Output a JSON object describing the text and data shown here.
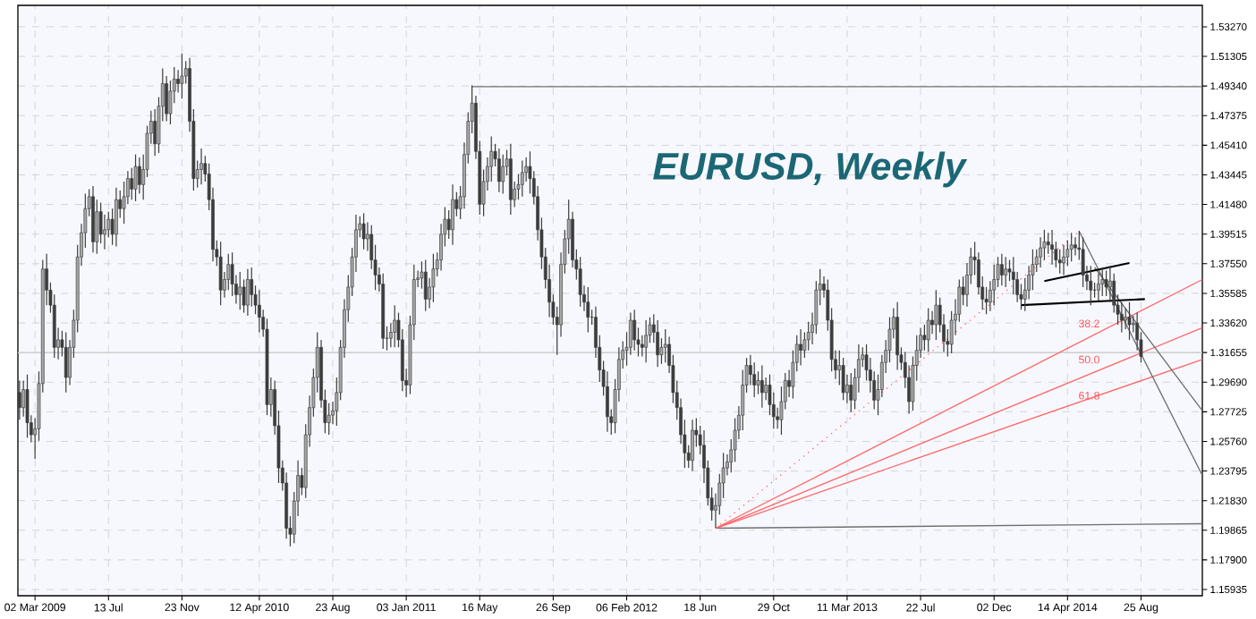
{
  "chart_data": {
    "type": "candlestick",
    "title": "EURUSD, Weekly",
    "color": "#3c3c3c",
    "x": [
      "2009-02-02",
      "2009-02-09",
      "2009-02-16",
      "2009-02-23",
      "2009-03-02",
      "2009-03-09",
      "2009-03-16",
      "2009-03-23",
      "2009-03-30",
      "2009-04-06",
      "2009-04-13",
      "2009-04-20",
      "2009-04-27",
      "2009-05-04",
      "2009-05-11",
      "2009-05-18",
      "2009-05-25",
      "2009-06-01",
      "2009-06-08",
      "2009-06-15",
      "2009-06-22",
      "2009-06-29",
      "2009-07-06",
      "2009-07-13",
      "2009-07-20",
      "2009-07-27",
      "2009-08-03",
      "2009-08-10",
      "2009-08-17",
      "2009-08-24",
      "2009-08-31",
      "2009-09-07",
      "2009-09-14",
      "2009-09-21",
      "2009-09-28",
      "2009-10-05",
      "2009-10-12",
      "2009-10-19",
      "2009-10-26",
      "2009-11-02",
      "2009-11-09",
      "2009-11-16",
      "2009-11-23",
      "2009-11-30",
      "2009-12-07",
      "2009-12-14",
      "2009-12-21",
      "2009-12-28",
      "2010-01-04",
      "2010-01-11",
      "2010-01-18",
      "2010-01-25",
      "2010-02-01",
      "2010-02-08",
      "2010-02-15",
      "2010-02-22",
      "2010-03-01",
      "2010-03-08",
      "2010-03-15",
      "2010-03-22",
      "2010-03-29",
      "2010-04-05",
      "2010-04-12",
      "2010-04-19",
      "2010-04-26",
      "2010-05-03",
      "2010-05-10",
      "2010-05-17",
      "2010-05-24",
      "2010-05-31",
      "2010-06-07",
      "2010-06-14",
      "2010-06-21",
      "2010-06-28",
      "2010-07-05",
      "2010-07-12",
      "2010-07-19",
      "2010-07-26",
      "2010-08-02",
      "2010-08-09",
      "2010-08-16",
      "2010-08-23",
      "2010-08-30",
      "2010-09-06",
      "2010-09-13",
      "2010-09-20",
      "2010-09-27",
      "2010-10-04",
      "2010-10-11",
      "2010-10-18",
      "2010-10-25",
      "2010-11-01",
      "2010-11-08",
      "2010-11-15",
      "2010-11-22",
      "2010-11-29",
      "2010-12-06",
      "2010-12-13",
      "2010-12-20",
      "2010-12-27",
      "2011-01-03",
      "2011-01-10",
      "2011-01-17",
      "2011-01-24",
      "2011-01-31",
      "2011-02-07",
      "2011-02-14",
      "2011-02-21",
      "2011-02-28",
      "2011-03-07",
      "2011-03-14",
      "2011-03-21",
      "2011-03-28",
      "2011-04-04",
      "2011-04-11",
      "2011-04-18",
      "2011-04-25",
      "2011-05-02",
      "2011-05-09",
      "2011-05-16",
      "2011-05-23",
      "2011-05-30",
      "2011-06-06",
      "2011-06-13",
      "2011-06-20",
      "2011-06-27",
      "2011-07-04",
      "2011-07-11",
      "2011-07-18",
      "2011-07-25",
      "2011-08-01",
      "2011-08-08",
      "2011-08-15",
      "2011-08-22",
      "2011-08-29",
      "2011-09-05",
      "2011-09-12",
      "2011-09-19",
      "2011-09-26",
      "2011-10-03",
      "2011-10-10",
      "2011-10-17",
      "2011-10-24",
      "2011-10-31",
      "2011-11-07",
      "2011-11-14",
      "2011-11-21",
      "2011-11-28",
      "2011-12-05",
      "2011-12-12",
      "2011-12-19",
      "2011-12-26",
      "2012-01-02",
      "2012-01-09",
      "2012-01-16",
      "2012-01-23",
      "2012-01-30",
      "2012-02-06",
      "2012-02-13",
      "2012-02-20",
      "2012-02-27",
      "2012-03-05",
      "2012-03-12",
      "2012-03-19",
      "2012-03-26",
      "2012-04-02",
      "2012-04-09",
      "2012-04-16",
      "2012-04-23",
      "2012-04-30",
      "2012-05-07",
      "2012-05-14",
      "2012-05-21",
      "2012-05-28",
      "2012-06-04",
      "2012-06-11",
      "2012-06-18",
      "2012-06-25",
      "2012-07-02",
      "2012-07-09",
      "2012-07-16",
      "2012-07-23",
      "2012-07-30",
      "2012-08-06",
      "2012-08-13",
      "2012-08-20",
      "2012-08-27",
      "2012-09-03",
      "2012-09-10",
      "2012-09-17",
      "2012-09-24",
      "2012-10-01",
      "2012-10-08",
      "2012-10-15",
      "2012-10-22",
      "2012-10-29",
      "2012-11-05",
      "2012-11-12",
      "2012-11-19",
      "2012-11-26",
      "2012-12-03",
      "2012-12-10",
      "2012-12-17",
      "2012-12-24",
      "2012-12-31",
      "2013-01-07",
      "2013-01-14",
      "2013-01-21",
      "2013-01-28",
      "2013-02-04",
      "2013-02-11",
      "2013-02-18",
      "2013-02-25",
      "2013-03-04",
      "2013-03-11",
      "2013-03-18",
      "2013-03-25",
      "2013-04-01",
      "2013-04-08",
      "2013-04-15",
      "2013-04-22",
      "2013-04-29",
      "2013-05-06",
      "2013-05-13",
      "2013-05-20",
      "2013-05-27",
      "2013-06-03",
      "2013-06-10",
      "2013-06-17",
      "2013-06-24",
      "2013-07-01",
      "2013-07-08",
      "2013-07-15",
      "2013-07-22",
      "2013-07-29",
      "2013-08-05",
      "2013-08-12",
      "2013-08-19",
      "2013-08-26",
      "2013-09-02",
      "2013-09-09",
      "2013-09-16",
      "2013-09-23",
      "2013-09-30",
      "2013-10-07",
      "2013-10-14",
      "2013-10-21",
      "2013-10-28",
      "2013-11-04",
      "2013-11-11",
      "2013-11-18",
      "2013-11-25",
      "2013-12-02",
      "2013-12-09",
      "2013-12-16",
      "2013-12-23",
      "2013-12-30",
      "2014-01-06",
      "2014-01-13",
      "2014-01-20",
      "2014-01-27",
      "2014-02-03",
      "2014-02-10",
      "2014-02-17",
      "2014-02-24",
      "2014-03-03",
      "2014-03-10",
      "2014-03-17",
      "2014-03-24",
      "2014-03-31",
      "2014-04-07",
      "2014-04-14",
      "2014-04-21",
      "2014-04-28",
      "2014-05-05",
      "2014-05-12",
      "2014-05-19",
      "2014-05-26",
      "2014-06-02",
      "2014-06-09",
      "2014-06-16",
      "2014-06-23",
      "2014-06-30",
      "2014-07-07",
      "2014-07-14",
      "2014-07-21",
      "2014-07-28",
      "2014-08-04",
      "2014-08-11",
      "2014-08-18",
      "2014-08-25"
    ],
    "ohlc": [
      [
        1.29,
        1.298,
        1.272,
        1.28
      ],
      [
        1.28,
        1.298,
        1.274,
        1.292
      ],
      [
        1.292,
        1.302,
        1.26,
        1.27
      ],
      [
        1.27,
        1.275,
        1.257,
        1.262
      ],
      [
        1.262,
        1.273,
        1.246,
        1.266
      ],
      [
        1.266,
        1.304,
        1.258,
        1.296
      ],
      [
        1.296,
        1.378,
        1.29,
        1.372
      ],
      [
        1.372,
        1.382,
        1.348,
        1.358
      ],
      [
        1.358,
        1.363,
        1.343,
        1.348
      ],
      [
        1.348,
        1.355,
        1.313,
        1.32
      ],
      [
        1.32,
        1.333,
        1.312,
        1.325
      ],
      [
        1.325,
        1.331,
        1.314,
        1.32
      ],
      [
        1.32,
        1.33,
        1.29,
        1.3
      ],
      [
        1.3,
        1.325,
        1.295,
        1.32
      ],
      [
        1.32,
        1.345,
        1.313,
        1.338
      ],
      [
        1.338,
        1.388,
        1.33,
        1.38
      ],
      [
        1.38,
        1.402,
        1.374,
        1.396
      ],
      [
        1.396,
        1.422,
        1.386,
        1.412
      ],
      [
        1.412,
        1.425,
        1.407,
        1.42
      ],
      [
        1.42,
        1.427,
        1.383,
        1.39
      ],
      [
        1.39,
        1.418,
        1.382,
        1.41
      ],
      [
        1.41,
        1.416,
        1.389,
        1.395
      ],
      [
        1.395,
        1.408,
        1.385,
        1.398
      ],
      [
        1.398,
        1.41,
        1.393,
        1.405
      ],
      [
        1.405,
        1.412,
        1.388,
        1.395
      ],
      [
        1.395,
        1.426,
        1.387,
        1.418
      ],
      [
        1.418,
        1.424,
        1.406,
        1.412
      ],
      [
        1.412,
        1.43,
        1.402,
        1.42
      ],
      [
        1.42,
        1.437,
        1.415,
        1.432
      ],
      [
        1.432,
        1.439,
        1.418,
        1.425
      ],
      [
        1.425,
        1.448,
        1.417,
        1.44
      ],
      [
        1.44,
        1.446,
        1.422,
        1.428
      ],
      [
        1.428,
        1.448,
        1.418,
        1.438
      ],
      [
        1.438,
        1.467,
        1.433,
        1.462
      ],
      [
        1.462,
        1.477,
        1.455,
        1.47
      ],
      [
        1.47,
        1.478,
        1.447,
        1.455
      ],
      [
        1.455,
        1.486,
        1.449,
        1.48
      ],
      [
        1.48,
        1.505,
        1.47,
        1.495
      ],
      [
        1.495,
        1.5,
        1.47,
        1.475
      ],
      [
        1.475,
        1.497,
        1.468,
        1.49
      ],
      [
        1.49,
        1.506,
        1.482,
        1.498
      ],
      [
        1.498,
        1.504,
        1.489,
        1.495
      ],
      [
        1.495,
        1.515,
        1.485,
        1.5
      ],
      [
        1.5,
        1.51,
        1.495,
        1.505
      ],
      [
        1.505,
        1.512,
        1.463,
        1.47
      ],
      [
        1.47,
        1.478,
        1.424,
        1.432
      ],
      [
        1.432,
        1.444,
        1.426,
        1.438
      ],
      [
        1.438,
        1.452,
        1.428,
        1.442
      ],
      [
        1.442,
        1.447,
        1.43,
        1.435
      ],
      [
        1.435,
        1.442,
        1.411,
        1.418
      ],
      [
        1.418,
        1.426,
        1.377,
        1.385
      ],
      [
        1.385,
        1.391,
        1.374,
        1.38
      ],
      [
        1.38,
        1.39,
        1.348,
        1.358
      ],
      [
        1.358,
        1.37,
        1.353,
        1.365
      ],
      [
        1.365,
        1.382,
        1.358,
        1.375
      ],
      [
        1.375,
        1.383,
        1.354,
        1.362
      ],
      [
        1.362,
        1.368,
        1.349,
        1.355
      ],
      [
        1.355,
        1.37,
        1.345,
        1.36
      ],
      [
        1.36,
        1.365,
        1.343,
        1.348
      ],
      [
        1.348,
        1.372,
        1.341,
        1.365
      ],
      [
        1.365,
        1.373,
        1.347,
        1.355
      ],
      [
        1.355,
        1.361,
        1.342,
        1.348
      ],
      [
        1.348,
        1.358,
        1.33,
        1.34
      ],
      [
        1.34,
        1.345,
        1.327,
        1.332
      ],
      [
        1.332,
        1.339,
        1.275,
        1.282
      ],
      [
        1.282,
        1.3,
        1.274,
        1.292
      ],
      [
        1.292,
        1.298,
        1.262,
        1.268
      ],
      [
        1.268,
        1.278,
        1.23,
        1.24
      ],
      [
        1.24,
        1.245,
        1.225,
        1.23
      ],
      [
        1.23,
        1.237,
        1.193,
        1.2
      ],
      [
        1.2,
        1.208,
        1.188,
        1.196
      ],
      [
        1.196,
        1.224,
        1.19,
        1.218
      ],
      [
        1.218,
        1.245,
        1.208,
        1.235
      ],
      [
        1.235,
        1.24,
        1.222,
        1.227
      ],
      [
        1.227,
        1.269,
        1.22,
        1.262
      ],
      [
        1.262,
        1.288,
        1.254,
        1.28
      ],
      [
        1.28,
        1.306,
        1.274,
        1.3
      ],
      [
        1.3,
        1.33,
        1.29,
        1.32
      ],
      [
        1.32,
        1.325,
        1.28,
        1.285
      ],
      [
        1.285,
        1.292,
        1.263,
        1.27
      ],
      [
        1.27,
        1.283,
        1.262,
        1.275
      ],
      [
        1.275,
        1.284,
        1.269,
        1.278
      ],
      [
        1.278,
        1.3,
        1.268,
        1.29
      ],
      [
        1.29,
        1.325,
        1.285,
        1.32
      ],
      [
        1.32,
        1.352,
        1.313,
        1.345
      ],
      [
        1.345,
        1.368,
        1.337,
        1.36
      ],
      [
        1.36,
        1.386,
        1.354,
        1.38
      ],
      [
        1.38,
        1.408,
        1.37,
        1.398
      ],
      [
        1.398,
        1.407,
        1.393,
        1.402
      ],
      [
        1.402,
        1.409,
        1.385,
        1.392
      ],
      [
        1.392,
        1.403,
        1.384,
        1.395
      ],
      [
        1.395,
        1.401,
        1.372,
        1.378
      ],
      [
        1.378,
        1.388,
        1.358,
        1.368
      ],
      [
        1.368,
        1.373,
        1.357,
        1.362
      ],
      [
        1.362,
        1.369,
        1.319,
        1.326
      ],
      [
        1.326,
        1.334,
        1.318,
        1.326
      ],
      [
        1.326,
        1.336,
        1.32,
        1.33
      ],
      [
        1.33,
        1.348,
        1.32,
        1.338
      ],
      [
        1.338,
        1.343,
        1.32,
        1.325
      ],
      [
        1.325,
        1.332,
        1.291,
        1.298
      ],
      [
        1.298,
        1.306,
        1.287,
        1.295
      ],
      [
        1.295,
        1.341,
        1.289,
        1.335
      ],
      [
        1.335,
        1.375,
        1.325,
        1.365
      ],
      [
        1.365,
        1.371,
        1.36,
        1.366
      ],
      [
        1.366,
        1.377,
        1.359,
        1.37
      ],
      [
        1.37,
        1.378,
        1.344,
        1.352
      ],
      [
        1.352,
        1.366,
        1.346,
        1.36
      ],
      [
        1.36,
        1.382,
        1.35,
        1.372
      ],
      [
        1.372,
        1.383,
        1.367,
        1.378
      ],
      [
        1.378,
        1.402,
        1.371,
        1.395
      ],
      [
        1.395,
        1.413,
        1.387,
        1.405
      ],
      [
        1.405,
        1.411,
        1.392,
        1.398
      ],
      [
        1.398,
        1.428,
        1.388,
        1.418
      ],
      [
        1.418,
        1.423,
        1.407,
        1.412
      ],
      [
        1.412,
        1.427,
        1.405,
        1.42
      ],
      [
        1.42,
        1.456,
        1.412,
        1.448
      ],
      [
        1.448,
        1.476,
        1.442,
        1.47
      ],
      [
        1.47,
        1.494,
        1.462,
        1.482
      ],
      [
        1.482,
        1.487,
        1.445,
        1.45
      ],
      [
        1.45,
        1.457,
        1.408,
        1.415
      ],
      [
        1.415,
        1.438,
        1.407,
        1.43
      ],
      [
        1.43,
        1.446,
        1.424,
        1.44
      ],
      [
        1.44,
        1.46,
        1.43,
        1.45
      ],
      [
        1.45,
        1.455,
        1.44,
        1.445
      ],
      [
        1.445,
        1.452,
        1.423,
        1.43
      ],
      [
        1.43,
        1.448,
        1.422,
        1.44
      ],
      [
        1.44,
        1.451,
        1.434,
        1.445
      ],
      [
        1.445,
        1.455,
        1.408,
        1.418
      ],
      [
        1.418,
        1.43,
        1.413,
        1.425
      ],
      [
        1.425,
        1.435,
        1.418,
        1.428
      ],
      [
        1.428,
        1.444,
        1.42,
        1.436
      ],
      [
        1.436,
        1.446,
        1.43,
        1.44
      ],
      [
        1.44,
        1.45,
        1.422,
        1.432
      ],
      [
        1.432,
        1.437,
        1.415,
        1.42
      ],
      [
        1.42,
        1.427,
        1.391,
        1.398
      ],
      [
        1.398,
        1.406,
        1.372,
        1.38
      ],
      [
        1.38,
        1.386,
        1.359,
        1.365
      ],
      [
        1.365,
        1.375,
        1.34,
        1.35
      ],
      [
        1.35,
        1.355,
        1.335,
        1.34
      ],
      [
        1.34,
        1.347,
        1.315,
        1.335
      ],
      [
        1.335,
        1.383,
        1.327,
        1.375
      ],
      [
        1.375,
        1.398,
        1.369,
        1.392
      ],
      [
        1.392,
        1.418,
        1.382,
        1.405
      ],
      [
        1.405,
        1.41,
        1.373,
        1.378
      ],
      [
        1.378,
        1.385,
        1.365,
        1.372
      ],
      [
        1.372,
        1.38,
        1.347,
        1.355
      ],
      [
        1.355,
        1.361,
        1.344,
        1.35
      ],
      [
        1.35,
        1.36,
        1.33,
        1.34
      ],
      [
        1.34,
        1.345,
        1.335,
        1.34
      ],
      [
        1.34,
        1.347,
        1.313,
        1.32
      ],
      [
        1.32,
        1.328,
        1.297,
        1.305
      ],
      [
        1.305,
        1.311,
        1.288,
        1.294
      ],
      [
        1.294,
        1.304,
        1.264,
        1.274
      ],
      [
        1.274,
        1.279,
        1.262,
        1.27
      ],
      [
        1.27,
        1.299,
        1.263,
        1.292
      ],
      [
        1.292,
        1.32,
        1.284,
        1.312
      ],
      [
        1.312,
        1.324,
        1.306,
        1.318
      ],
      [
        1.318,
        1.33,
        1.308,
        1.32
      ],
      [
        1.32,
        1.343,
        1.315,
        1.338
      ],
      [
        1.338,
        1.345,
        1.318,
        1.325
      ],
      [
        1.325,
        1.333,
        1.314,
        1.322
      ],
      [
        1.322,
        1.328,
        1.314,
        1.32
      ],
      [
        1.32,
        1.338,
        1.31,
        1.328
      ],
      [
        1.328,
        1.34,
        1.323,
        1.335
      ],
      [
        1.335,
        1.342,
        1.323,
        1.33
      ],
      [
        1.33,
        1.338,
        1.307,
        1.315
      ],
      [
        1.315,
        1.326,
        1.309,
        1.32
      ],
      [
        1.32,
        1.332,
        1.31,
        1.322
      ],
      [
        1.322,
        1.327,
        1.303,
        1.308
      ],
      [
        1.308,
        1.315,
        1.283,
        1.29
      ],
      [
        1.29,
        1.298,
        1.272,
        1.28
      ],
      [
        1.28,
        1.286,
        1.256,
        1.262
      ],
      [
        1.262,
        1.272,
        1.24,
        1.25
      ],
      [
        1.25,
        1.255,
        1.24,
        1.245
      ],
      [
        1.245,
        1.272,
        1.238,
        1.265
      ],
      [
        1.265,
        1.273,
        1.254,
        1.262
      ],
      [
        1.262,
        1.268,
        1.249,
        1.255
      ],
      [
        1.255,
        1.265,
        1.23,
        1.24
      ],
      [
        1.24,
        1.245,
        1.215,
        1.22
      ],
      [
        1.22,
        1.227,
        1.205,
        1.212
      ],
      [
        1.212,
        1.223,
        1.2003,
        1.215
      ],
      [
        1.215,
        1.236,
        1.209,
        1.23
      ],
      [
        1.23,
        1.25,
        1.22,
        1.24
      ],
      [
        1.24,
        1.249,
        1.235,
        1.244
      ],
      [
        1.244,
        1.259,
        1.237,
        1.252
      ],
      [
        1.252,
        1.273,
        1.244,
        1.265
      ],
      [
        1.265,
        1.281,
        1.259,
        1.275
      ],
      [
        1.275,
        1.305,
        1.265,
        1.295
      ],
      [
        1.295,
        1.313,
        1.29,
        1.308
      ],
      [
        1.308,
        1.315,
        1.295,
        1.302
      ],
      [
        1.302,
        1.31,
        1.287,
        1.295
      ],
      [
        1.295,
        1.304,
        1.289,
        1.298
      ],
      [
        1.298,
        1.308,
        1.28,
        1.29
      ],
      [
        1.29,
        1.3,
        1.285,
        1.295
      ],
      [
        1.295,
        1.302,
        1.275,
        1.282
      ],
      [
        1.282,
        1.29,
        1.266,
        1.274
      ],
      [
        1.274,
        1.28,
        1.266,
        1.272
      ],
      [
        1.272,
        1.294,
        1.262,
        1.284
      ],
      [
        1.284,
        1.303,
        1.279,
        1.298
      ],
      [
        1.298,
        1.305,
        1.287,
        1.294
      ],
      [
        1.294,
        1.318,
        1.286,
        1.31
      ],
      [
        1.31,
        1.328,
        1.304,
        1.322
      ],
      [
        1.322,
        1.332,
        1.308,
        1.318
      ],
      [
        1.318,
        1.33,
        1.313,
        1.325
      ],
      [
        1.325,
        1.337,
        1.318,
        1.33
      ],
      [
        1.33,
        1.343,
        1.322,
        1.335
      ],
      [
        1.335,
        1.364,
        1.329,
        1.358
      ],
      [
        1.358,
        1.372,
        1.348,
        1.362
      ],
      [
        1.362,
        1.367,
        1.353,
        1.358
      ],
      [
        1.358,
        1.365,
        1.331,
        1.338
      ],
      [
        1.338,
        1.346,
        1.304,
        1.312
      ],
      [
        1.312,
        1.318,
        1.299,
        1.305
      ],
      [
        1.305,
        1.318,
        1.295,
        1.308
      ],
      [
        1.308,
        1.313,
        1.285,
        1.29
      ],
      [
        1.29,
        1.302,
        1.283,
        1.295
      ],
      [
        1.295,
        1.303,
        1.277,
        1.285
      ],
      [
        1.285,
        1.306,
        1.279,
        1.3
      ],
      [
        1.3,
        1.322,
        1.29,
        1.312
      ],
      [
        1.312,
        1.32,
        1.307,
        1.315
      ],
      [
        1.315,
        1.322,
        1.298,
        1.305
      ],
      [
        1.305,
        1.313,
        1.29,
        1.298
      ],
      [
        1.298,
        1.304,
        1.279,
        1.285
      ],
      [
        1.285,
        1.302,
        1.275,
        1.292
      ],
      [
        1.292,
        1.315,
        1.287,
        1.31
      ],
      [
        1.31,
        1.325,
        1.303,
        1.318
      ],
      [
        1.318,
        1.34,
        1.31,
        1.332
      ],
      [
        1.332,
        1.346,
        1.326,
        1.34
      ],
      [
        1.34,
        1.35,
        1.305,
        1.315
      ],
      [
        1.315,
        1.32,
        1.305,
        1.31
      ],
      [
        1.31,
        1.317,
        1.293,
        1.3
      ],
      [
        1.3,
        1.308,
        1.276,
        1.284
      ],
      [
        1.284,
        1.314,
        1.278,
        1.308
      ],
      [
        1.308,
        1.328,
        1.298,
        1.318
      ],
      [
        1.318,
        1.333,
        1.313,
        1.328
      ],
      [
        1.328,
        1.335,
        1.318,
        1.325
      ],
      [
        1.325,
        1.346,
        1.317,
        1.338
      ],
      [
        1.338,
        1.344,
        1.329,
        1.335
      ],
      [
        1.335,
        1.358,
        1.325,
        1.348
      ],
      [
        1.348,
        1.353,
        1.33,
        1.335
      ],
      [
        1.335,
        1.342,
        1.317,
        1.324
      ],
      [
        1.324,
        1.332,
        1.314,
        1.322
      ],
      [
        1.322,
        1.344,
        1.316,
        1.338
      ],
      [
        1.338,
        1.352,
        1.328,
        1.342
      ],
      [
        1.342,
        1.365,
        1.337,
        1.36
      ],
      [
        1.36,
        1.367,
        1.348,
        1.355
      ],
      [
        1.355,
        1.376,
        1.347,
        1.368
      ],
      [
        1.368,
        1.386,
        1.362,
        1.38
      ],
      [
        1.38,
        1.39,
        1.368,
        1.378
      ],
      [
        1.378,
        1.383,
        1.355,
        1.36
      ],
      [
        1.36,
        1.367,
        1.345,
        1.352
      ],
      [
        1.352,
        1.36,
        1.342,
        1.35
      ],
      [
        1.35,
        1.364,
        1.344,
        1.358
      ],
      [
        1.358,
        1.375,
        1.348,
        1.365
      ],
      [
        1.365,
        1.38,
        1.36,
        1.375
      ],
      [
        1.375,
        1.382,
        1.361,
        1.368
      ],
      [
        1.368,
        1.38,
        1.36,
        1.372
      ],
      [
        1.372,
        1.378,
        1.364,
        1.37
      ],
      [
        1.37,
        1.38,
        1.355,
        1.365
      ],
      [
        1.365,
        1.37,
        1.35,
        1.355
      ],
      [
        1.355,
        1.362,
        1.345,
        1.352
      ],
      [
        1.352,
        1.366,
        1.344,
        1.358
      ],
      [
        1.358,
        1.374,
        1.352,
        1.368
      ],
      [
        1.368,
        1.385,
        1.358,
        1.375
      ],
      [
        1.375,
        1.385,
        1.37,
        1.38
      ],
      [
        1.38,
        1.393,
        1.373,
        1.386
      ],
      [
        1.386,
        1.398,
        1.378,
        1.39
      ],
      [
        1.39,
        1.396,
        1.382,
        1.388
      ],
      [
        1.388,
        1.398,
        1.375,
        1.385
      ],
      [
        1.385,
        1.39,
        1.373,
        1.378
      ],
      [
        1.378,
        1.385,
        1.369,
        1.376
      ],
      [
        1.376,
        1.388,
        1.368,
        1.38
      ],
      [
        1.38,
        1.391,
        1.374,
        1.385
      ],
      [
        1.385,
        1.396,
        1.377,
        1.388
      ],
      [
        1.388,
        1.393,
        1.381,
        1.386
      ],
      [
        1.386,
        1.3974,
        1.378,
        1.385
      ],
      [
        1.385,
        1.393,
        1.36,
        1.368
      ],
      [
        1.368,
        1.374,
        1.358,
        1.364
      ],
      [
        1.364,
        1.374,
        1.348,
        1.358
      ],
      [
        1.358,
        1.363,
        1.353,
        1.358
      ],
      [
        1.358,
        1.369,
        1.351,
        1.362
      ],
      [
        1.362,
        1.373,
        1.354,
        1.365
      ],
      [
        1.365,
        1.371,
        1.354,
        1.36
      ],
      [
        1.36,
        1.374,
        1.35,
        1.364
      ],
      [
        1.364,
        1.369,
        1.343,
        1.348
      ],
      [
        1.348,
        1.355,
        1.335,
        1.342
      ],
      [
        1.342,
        1.35,
        1.33,
        1.338
      ],
      [
        1.338,
        1.346,
        1.332,
        1.34
      ],
      [
        1.34,
        1.35,
        1.325,
        1.335
      ],
      [
        1.335,
        1.341,
        1.33,
        1.336
      ],
      [
        1.336,
        1.343,
        1.318,
        1.325
      ],
      [
        1.325,
        1.33,
        1.31,
        1.314
      ]
    ],
    "series": [
      {
        "type": "line",
        "x": [
          "2011-05-02",
          "2014-12-14"
        ],
        "values": [
          1.493,
          1.493
        ],
        "color": "#707070"
      },
      {
        "type": "line",
        "x": [
          "2012-07-16",
          "2014-12-14"
        ],
        "values": [
          1.2,
          1.203
        ],
        "color": "#707070"
      },
      {
        "type": "line",
        "x": [
          "2012-07-16",
          "2014-05-05"
        ],
        "values": [
          1.2,
          1.397
        ],
        "color": "#ff6666",
        "line_style": "dotted"
      },
      {
        "type": "line",
        "x": [
          "2012-07-16",
          "2014-12-14"
        ],
        "values": [
          1.2,
          1.365
        ],
        "color": "#ff6666"
      },
      {
        "type": "line",
        "x": [
          "2012-07-16",
          "2014-12-14"
        ],
        "values": [
          1.2,
          1.333
        ],
        "color": "#ff6666"
      },
      {
        "type": "line",
        "x": [
          "2012-07-16",
          "2014-12-14"
        ],
        "values": [
          1.2,
          1.312
        ],
        "color": "#ff6666"
      },
      {
        "type": "line",
        "x": [
          "2014-05-05",
          "2014-12-14"
        ],
        "values": [
          1.397,
          1.235
        ],
        "color": "#707070"
      },
      {
        "type": "line",
        "x": [
          "2014-06-02",
          "2014-12-14"
        ],
        "values": [
          1.373,
          1.278
        ],
        "color": "#707070"
      },
      {
        "type": "line",
        "x": [
          "2014-03-03",
          "2014-08-04"
        ],
        "values": [
          1.364,
          1.376
        ],
        "color": "#000000"
      },
      {
        "type": "line",
        "x": [
          "2014-01-20",
          "2014-09-01"
        ],
        "values": [
          1.348,
          1.352
        ],
        "color": "#000000"
      }
    ],
    "ref_lines": [
      {
        "axis": "y",
        "value": 1.3165,
        "color": "#cfcfcf"
      }
    ],
    "annotations": [
      "38.2",
      "50.0",
      "61.8"
    ],
    "xlim": [
      "2009-01-30",
      "2014-12-14"
    ],
    "ylim": [
      1.1552,
      1.5469
    ],
    "xticks": [
      {
        "value": "2009-03-02",
        "label": "02 Mar 2009"
      },
      {
        "value": "2009-07-13",
        "label": "13 Jul"
      },
      {
        "value": "2009-11-23",
        "label": "23 Nov"
      },
      {
        "value": "2010-04-12",
        "label": "12 Apr 2010"
      },
      {
        "value": "2010-08-23",
        "label": "23 Aug"
      },
      {
        "value": "2011-01-03",
        "label": "03 Jan 2011"
      },
      {
        "value": "2011-05-16",
        "label": "16 May"
      },
      {
        "value": "2011-09-26",
        "label": "26 Sep"
      },
      {
        "value": "2012-02-06",
        "label": "06 Feb 2012"
      },
      {
        "value": "2012-06-18",
        "label": "18 Jun"
      },
      {
        "value": "2012-10-29",
        "label": "29 Oct"
      },
      {
        "value": "2013-03-11",
        "label": "11 Mar 2013"
      },
      {
        "value": "2013-07-22",
        "label": "22 Jul"
      },
      {
        "value": "2013-12-02",
        "label": "02 Dec"
      },
      {
        "value": "2014-04-14",
        "label": "14 Apr 2014"
      },
      {
        "value": "2014-08-25",
        "label": "25 Aug"
      }
    ],
    "yticks": [
      {
        "value": 1.15935,
        "label": "1.15935"
      },
      {
        "value": 1.179,
        "label": "1.17900"
      },
      {
        "value": 1.19865,
        "label": "1.19865"
      },
      {
        "value": 1.2183,
        "label": "1.21830"
      },
      {
        "value": 1.23795,
        "label": "1.23795"
      },
      {
        "value": 1.2576,
        "label": "1.25760"
      },
      {
        "value": 1.27725,
        "label": "1.27725"
      },
      {
        "value": 1.2969,
        "label": "1.29690"
      },
      {
        "value": 1.31655,
        "label": "1.31655"
      },
      {
        "value": 1.3362,
        "label": "1.33620"
      },
      {
        "value": 1.35585,
        "label": "1.35585"
      },
      {
        "value": 1.3755,
        "label": "1.37550"
      },
      {
        "value": 1.39515,
        "label": "1.39515"
      },
      {
        "value": 1.4148,
        "label": "1.41480"
      },
      {
        "value": 1.43445,
        "label": "1.43445"
      },
      {
        "value": 1.4541,
        "label": "1.45410"
      },
      {
        "value": 1.47375,
        "label": "1.47375"
      },
      {
        "value": 1.4934,
        "label": "1.49340"
      },
      {
        "value": 1.51305,
        "label": "1.51305"
      },
      {
        "value": 1.5327,
        "label": "1.53270"
      }
    ],
    "grid": true
  }
}
